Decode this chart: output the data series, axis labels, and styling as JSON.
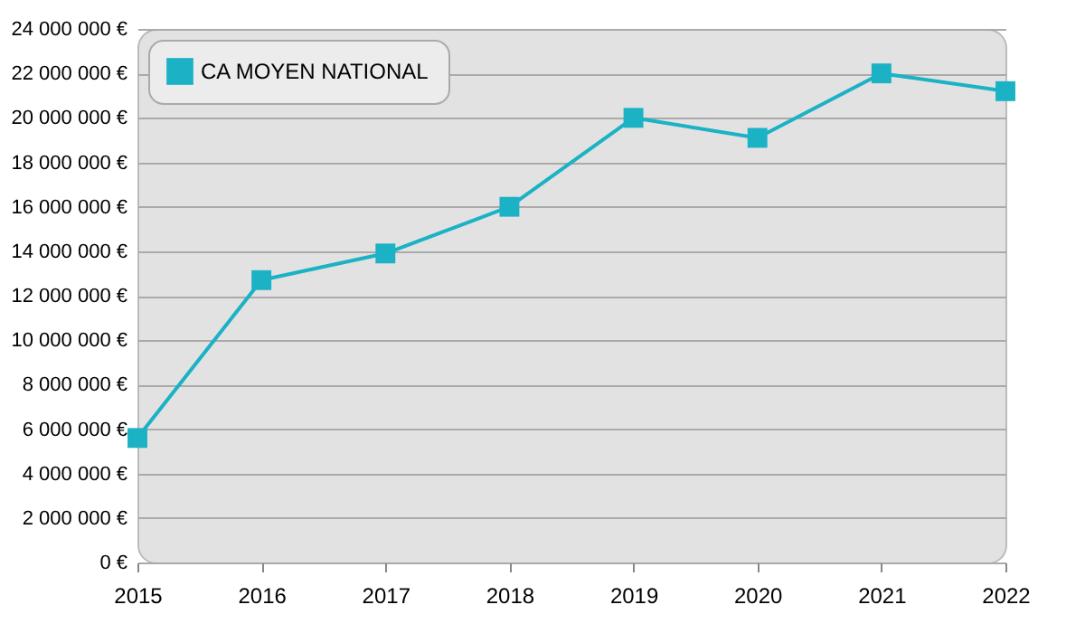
{
  "chart_data": {
    "type": "line",
    "x": [
      2015,
      2016,
      2017,
      2018,
      2019,
      2020,
      2021,
      2022
    ],
    "series": [
      {
        "name": "CA MOYEN NATIONAL",
        "color": "#1ab2c4",
        "values": [
          5600000,
          12700000,
          13900000,
          16000000,
          20000000,
          19100000,
          22000000,
          21200000
        ]
      }
    ],
    "xlim": [
      2015,
      2022
    ],
    "xticks": [
      2015,
      2016,
      2017,
      2018,
      2019,
      2020,
      2021,
      2022
    ],
    "ylim": [
      0,
      24000000
    ],
    "yticks": [
      {
        "value": 0,
        "label": "0 €"
      },
      {
        "value": 2000000,
        "label": "2 000 000 €"
      },
      {
        "value": 4000000,
        "label": "4 000 000 €"
      },
      {
        "value": 6000000,
        "label": "6 000 000 €"
      },
      {
        "value": 8000000,
        "label": "8 000 000 €"
      },
      {
        "value": 10000000,
        "label": "10 000 000 €"
      },
      {
        "value": 12000000,
        "label": "12 000 000 €"
      },
      {
        "value": 14000000,
        "label": "14 000 000 €"
      },
      {
        "value": 16000000,
        "label": "16 000 000 €"
      },
      {
        "value": 18000000,
        "label": "18 000 000 €"
      },
      {
        "value": 20000000,
        "label": "20 000 000 €"
      },
      {
        "value": 22000000,
        "label": "22 000 000 €"
      },
      {
        "value": 24000000,
        "label": "24 000 000 €"
      }
    ],
    "grid": "y",
    "legend": "top left",
    "marker": "square",
    "line_style": "solid"
  }
}
